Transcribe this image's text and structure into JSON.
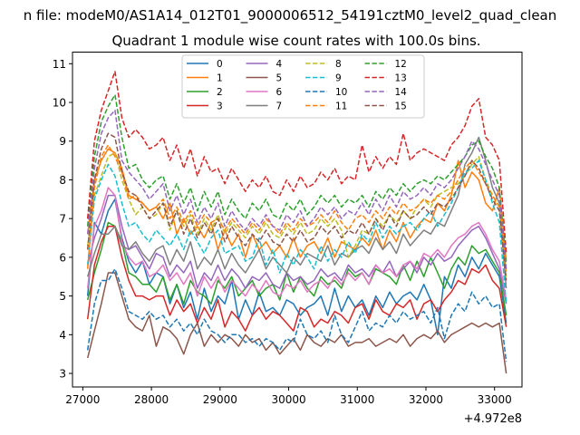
{
  "chart_data": {
    "type": "line",
    "suptitle": "n file: modeM0/AS1A14_012T01_9000006512_54191cztM0_level2_quad_clean",
    "title": "Quadrant 1 module wise count rates with 100.0s bins.",
    "xlabel": "",
    "ylabel": "",
    "offset_label": "+4.972e8",
    "xlim": [
      26850,
      33400
    ],
    "ylim": [
      2.65,
      11.3
    ],
    "x_ticks": [
      27000,
      28000,
      29000,
      30000,
      31000,
      32000,
      33000
    ],
    "x_tick_labels": [
      "27000",
      "28000",
      "29000",
      "30000",
      "31000",
      "32000",
      "33000"
    ],
    "y_ticks": [
      3,
      4,
      5,
      6,
      7,
      8,
      9,
      10,
      11
    ],
    "y_tick_labels": [
      "3",
      "4",
      "5",
      "6",
      "7",
      "8",
      "9",
      "10",
      "11"
    ],
    "x": [
      27070,
      27170,
      27270,
      27370,
      27470,
      27570,
      27670,
      27770,
      27870,
      27970,
      28070,
      28170,
      28270,
      28370,
      28470,
      28570,
      28670,
      28770,
      28870,
      28970,
      29070,
      29170,
      29270,
      29370,
      29470,
      29570,
      29670,
      29770,
      29870,
      29970,
      30070,
      30170,
      30270,
      30370,
      30470,
      30570,
      30670,
      30770,
      30870,
      30970,
      31070,
      31170,
      31270,
      31370,
      31470,
      31570,
      31670,
      31770,
      31870,
      31970,
      32070,
      32170,
      32270,
      32370,
      32470,
      32570,
      32670,
      32770,
      32870,
      32970,
      33070,
      33170
    ],
    "legend": {
      "placement": "top-center",
      "columns": 4
    },
    "grid": false,
    "series": [
      {
        "name": "0",
        "color": "#1f77b4",
        "style": "solid",
        "values": [
          5.0,
          6.9,
          6.6,
          7.2,
          7.5,
          6.5,
          5.9,
          5.6,
          5.9,
          5.3,
          5.6,
          5.5,
          4.8,
          5.3,
          4.7,
          5.1,
          4.4,
          5.2,
          4.6,
          5.0,
          4.8,
          5.4,
          4.4,
          4.9,
          4.5,
          5.1,
          4.6,
          4.7,
          4.5,
          4.9,
          4.8,
          4.5,
          4.7,
          4.8,
          5.0,
          4.5,
          5.2,
          4.6,
          5.0,
          4.7,
          4.9,
          4.5,
          5.0,
          4.7,
          5.1,
          4.8,
          5.0,
          5.1,
          4.9,
          5.3,
          4.9,
          4.0,
          5.5,
          5.2,
          5.8,
          5.5,
          6.0,
          5.7,
          6.1,
          5.8,
          5.5,
          4.3
        ]
      },
      {
        "name": "1",
        "color": "#ff7f0e",
        "style": "solid",
        "values": [
          6.6,
          8.0,
          8.5,
          8.8,
          8.7,
          8.3,
          7.6,
          7.5,
          7.4,
          7.2,
          7.3,
          7.0,
          7.4,
          6.6,
          7.0,
          6.6,
          6.8,
          6.5,
          6.9,
          6.2,
          6.7,
          6.3,
          6.6,
          6.0,
          6.6,
          6.2,
          6.4,
          6.1,
          6.3,
          6.0,
          6.5,
          6.0,
          6.3,
          6.4,
          6.1,
          6.5,
          6.0,
          6.4,
          6.3,
          6.2,
          6.5,
          6.3,
          6.7,
          6.2,
          6.7,
          6.4,
          6.9,
          6.5,
          6.8,
          7.0,
          6.9,
          7.4,
          7.2,
          7.6,
          8.5,
          7.8,
          8.2,
          8.0,
          7.4,
          7.2,
          7.8,
          5.9
        ]
      },
      {
        "name": "2",
        "color": "#2ca02c",
        "style": "solid",
        "values": [
          4.9,
          5.6,
          6.2,
          6.9,
          6.8,
          6.4,
          5.6,
          5.5,
          5.3,
          5.3,
          5.1,
          5.5,
          4.9,
          5.3,
          4.8,
          5.4,
          5.1,
          5.0,
          4.8,
          5.4,
          5.2,
          5.5,
          5.0,
          5.2,
          5.4,
          5.0,
          5.2,
          5.3,
          4.9,
          5.6,
          5.1,
          5.5,
          5.2,
          5.0,
          5.5,
          5.3,
          5.4,
          5.2,
          5.7,
          5.5,
          5.6,
          5.3,
          5.7,
          5.6,
          5.5,
          5.3,
          5.8,
          5.4,
          5.9,
          5.5,
          6.0,
          5.6,
          5.2,
          5.7,
          6.0,
          5.8,
          6.3,
          6.1,
          6.2,
          5.9,
          5.6,
          4.5
        ]
      },
      {
        "name": "3",
        "color": "#d62728",
        "style": "solid",
        "values": [
          4.4,
          5.8,
          6.4,
          6.8,
          6.8,
          6.0,
          5.4,
          5.0,
          5.0,
          4.9,
          5.0,
          5.0,
          4.5,
          4.9,
          4.6,
          4.8,
          4.3,
          4.7,
          4.4,
          4.9,
          4.2,
          4.6,
          4.4,
          4.1,
          4.5,
          4.7,
          4.4,
          4.6,
          4.5,
          4.3,
          4.1,
          4.7,
          4.6,
          4.2,
          4.4,
          4.3,
          4.6,
          4.5,
          4.3,
          4.7,
          4.8,
          4.4,
          4.9,
          4.6,
          4.5,
          4.8,
          4.7,
          4.9,
          4.4,
          4.8,
          4.9,
          4.6,
          4.9,
          5.1,
          5.4,
          5.3,
          5.7,
          5.6,
          5.8,
          5.4,
          5.2,
          4.2
        ]
      },
      {
        "name": "4",
        "color": "#9467bd",
        "style": "solid",
        "values": [
          5.8,
          6.5,
          7.0,
          7.6,
          7.6,
          6.8,
          6.2,
          6.3,
          6.0,
          5.7,
          6.1,
          6.0,
          5.5,
          5.8,
          5.6,
          5.9,
          5.2,
          5.6,
          5.4,
          5.8,
          5.4,
          5.7,
          5.5,
          5.2,
          5.5,
          5.4,
          5.6,
          5.3,
          5.2,
          5.6,
          5.4,
          5.5,
          5.3,
          5.4,
          5.7,
          5.5,
          5.6,
          5.4,
          5.8,
          5.6,
          5.7,
          5.5,
          5.8,
          5.6,
          5.9,
          5.5,
          5.7,
          5.9,
          5.6,
          6.0,
          5.8,
          6.1,
          5.9,
          6.0,
          6.3,
          6.5,
          6.7,
          6.8,
          6.5,
          6.1,
          5.7,
          4.8
        ]
      },
      {
        "name": "5",
        "color": "#8c564b",
        "style": "solid",
        "values": [
          3.4,
          4.1,
          4.8,
          5.6,
          5.6,
          5.0,
          4.4,
          4.2,
          4.1,
          4.5,
          3.7,
          4.2,
          4.1,
          3.9,
          3.5,
          4.0,
          4.3,
          3.7,
          4.0,
          3.8,
          4.0,
          3.9,
          3.7,
          4.0,
          3.8,
          3.9,
          3.6,
          3.8,
          3.5,
          3.7,
          3.9,
          3.6,
          4.0,
          3.8,
          3.7,
          3.9,
          3.8,
          4.0,
          3.7,
          3.8,
          3.8,
          3.9,
          3.7,
          3.8,
          3.9,
          3.8,
          4.0,
          3.7,
          3.9,
          4.0,
          3.9,
          4.1,
          3.8,
          4.0,
          4.1,
          4.2,
          4.3,
          4.2,
          4.3,
          4.2,
          4.3,
          3.0
        ]
      },
      {
        "name": "6",
        "color": "#e377c2",
        "style": "solid",
        "values": [
          5.2,
          6.8,
          7.2,
          7.8,
          7.6,
          6.4,
          6.0,
          5.8,
          5.9,
          5.5,
          5.6,
          5.8,
          5.4,
          5.6,
          5.3,
          5.6,
          5.0,
          5.5,
          5.2,
          5.5,
          5.1,
          5.4,
          5.2,
          5.0,
          5.3,
          5.1,
          5.4,
          5.1,
          5.0,
          5.3,
          5.2,
          5.4,
          5.1,
          5.3,
          5.4,
          5.2,
          5.5,
          5.3,
          5.6,
          5.4,
          5.6,
          5.3,
          5.8,
          5.6,
          5.7,
          5.5,
          5.8,
          5.9,
          5.7,
          6.1,
          6.0,
          6.2,
          6.0,
          6.3,
          6.5,
          6.6,
          6.8,
          6.9,
          6.6,
          6.2,
          5.9,
          4.9
        ]
      },
      {
        "name": "7",
        "color": "#7f7f7f",
        "style": "solid",
        "values": [
          5.5,
          6.1,
          6.6,
          6.6,
          6.8,
          6.3,
          6.2,
          6.4,
          6.1,
          5.9,
          6.2,
          6.3,
          5.8,
          6.2,
          5.9,
          6.4,
          5.7,
          6.0,
          5.8,
          6.2,
          5.7,
          6.1,
          5.8,
          5.6,
          5.9,
          6.2,
          5.7,
          6.0,
          5.8,
          5.6,
          6.0,
          5.8,
          6.1,
          6.0,
          5.9,
          6.3,
          5.8,
          6.1,
          6.0,
          6.2,
          6.3,
          6.1,
          6.5,
          6.2,
          6.4,
          6.1,
          6.6,
          6.3,
          6.5,
          6.7,
          6.6,
          6.9,
          6.8,
          7.2,
          7.6,
          8.4,
          8.7,
          9.1,
          8.5,
          7.8,
          7.4,
          5.2
        ]
      },
      {
        "name": "8",
        "color": "#bcbd22",
        "style": "dashed",
        "values": [
          6.3,
          7.6,
          8.1,
          8.6,
          8.7,
          8.0,
          7.5,
          7.1,
          7.3,
          7.0,
          7.1,
          7.4,
          6.7,
          7.2,
          6.8,
          7.1,
          6.6,
          7.0,
          6.7,
          7.1,
          6.6,
          6.9,
          6.7,
          6.5,
          6.8,
          6.6,
          6.9,
          6.6,
          6.5,
          6.8,
          6.6,
          6.9,
          6.6,
          6.7,
          7.0,
          6.8,
          7.0,
          6.7,
          6.0,
          6.3,
          6.7,
          6.6,
          7.0,
          6.8,
          7.1,
          6.9,
          7.2,
          7.0,
          7.3,
          7.5,
          7.3,
          7.6,
          7.7,
          7.8,
          7.9,
          8.1,
          8.4,
          8.6,
          8.0,
          7.6,
          7.3,
          5.5
        ]
      },
      {
        "name": "9",
        "color": "#17becf",
        "style": "dashed",
        "values": [
          5.8,
          7.5,
          8.0,
          8.4,
          8.1,
          7.4,
          6.8,
          6.9,
          6.6,
          6.4,
          6.7,
          6.5,
          6.3,
          6.6,
          6.2,
          6.7,
          6.4,
          6.1,
          6.5,
          6.7,
          6.1,
          6.2,
          6.3,
          5.9,
          6.0,
          6.5,
          5.8,
          6.2,
          5.6,
          6.1,
          5.8,
          6.2,
          6.0,
          5.7,
          6.3,
          5.9,
          6.2,
          6.0,
          6.4,
          6.1,
          6.6,
          6.4,
          6.9,
          6.5,
          6.8,
          6.6,
          6.8,
          6.9,
          6.7,
          7.0,
          7.2,
          6.8,
          7.1,
          7.4,
          7.8,
          8.2,
          8.3,
          8.5,
          8.0,
          7.4,
          6.9,
          4.8
        ]
      },
      {
        "name": "10",
        "color": "#1f77b4",
        "style": "dashed",
        "values": [
          3.6,
          4.8,
          5.4,
          5.4,
          5.7,
          5.2,
          4.6,
          4.5,
          4.4,
          4.6,
          4.4,
          4.5,
          4.2,
          4.4,
          4.1,
          4.3,
          4.0,
          4.4,
          4.1,
          4.0,
          3.8,
          4.0,
          4.0,
          3.8,
          3.9,
          3.7,
          3.9,
          3.8,
          3.6,
          3.9,
          3.8,
          4.4,
          4.0,
          3.9,
          4.1,
          3.8,
          4.5,
          4.0,
          3.8,
          4.2,
          4.6,
          4.1,
          4.3,
          4.2,
          4.5,
          4.3,
          4.6,
          4.4,
          4.5,
          4.6,
          4.3,
          4.7,
          3.9,
          4.5,
          4.8,
          4.6,
          5.1,
          4.8,
          5.0,
          4.7,
          4.8,
          3.3
        ]
      },
      {
        "name": "11",
        "color": "#ff7f0e",
        "style": "dashed",
        "values": [
          5.7,
          7.8,
          8.6,
          8.9,
          8.6,
          8.2,
          7.5,
          7.6,
          7.4,
          7.2,
          7.3,
          7.5,
          7.0,
          7.3,
          6.9,
          7.2,
          6.8,
          7.1,
          6.9,
          7.0,
          6.7,
          7.0,
          6.8,
          6.6,
          6.9,
          6.7,
          7.0,
          6.8,
          6.6,
          6.9,
          6.7,
          7.0,
          6.8,
          6.9,
          7.1,
          6.9,
          7.2,
          6.9,
          6.7,
          7.0,
          7.1,
          6.9,
          7.2,
          7.0,
          7.3,
          7.1,
          7.4,
          7.2,
          7.3,
          7.5,
          7.4,
          7.6,
          7.5,
          7.7,
          8.0,
          8.3,
          8.5,
          8.2,
          7.9,
          7.6,
          7.3,
          5.6
        ]
      },
      {
        "name": "12",
        "color": "#2ca02c",
        "style": "dashed",
        "values": [
          6.8,
          8.6,
          9.5,
          9.9,
          10.2,
          9.1,
          8.3,
          8.4,
          8.0,
          7.8,
          8.0,
          8.1,
          7.5,
          7.9,
          7.4,
          7.8,
          7.2,
          7.7,
          7.3,
          7.7,
          7.1,
          7.5,
          7.2,
          7.0,
          7.4,
          7.2,
          7.5,
          7.1,
          7.0,
          7.4,
          7.2,
          7.5,
          7.1,
          7.3,
          7.6,
          7.4,
          7.6,
          7.3,
          7.5,
          7.4,
          7.6,
          7.3,
          7.7,
          7.5,
          7.8,
          7.6,
          7.9,
          7.7,
          7.9,
          8.0,
          7.9,
          8.1,
          8.0,
          8.2,
          8.4,
          8.6,
          8.9,
          9.0,
          8.6,
          8.3,
          7.8,
          5.8
        ]
      },
      {
        "name": "13",
        "color": "#d62728",
        "style": "dashed",
        "values": [
          7.0,
          9.0,
          9.8,
          10.3,
          10.8,
          9.6,
          9.1,
          9.3,
          9.1,
          8.8,
          8.9,
          9.1,
          8.5,
          8.9,
          8.3,
          8.8,
          8.1,
          8.6,
          8.2,
          8.3,
          7.9,
          8.3,
          8.0,
          7.7,
          8.0,
          7.8,
          8.1,
          7.7,
          7.6,
          8.0,
          7.7,
          8.1,
          7.8,
          7.9,
          8.2,
          8.0,
          8.3,
          7.9,
          8.1,
          8.0,
          8.9,
          8.2,
          8.6,
          8.3,
          8.6,
          8.4,
          9.2,
          8.5,
          8.7,
          8.8,
          8.7,
          8.6,
          8.5,
          8.9,
          9.1,
          9.4,
          9.9,
          10.1,
          9.1,
          8.9,
          8.5,
          6.1
        ]
      },
      {
        "name": "14",
        "color": "#9467bd",
        "style": "dashed",
        "values": [
          6.6,
          8.3,
          9.2,
          9.6,
          9.8,
          8.5,
          8.2,
          8.0,
          7.8,
          7.5,
          7.7,
          7.9,
          7.2,
          7.6,
          7.1,
          7.5,
          6.9,
          7.3,
          7.0,
          7.4,
          6.8,
          7.2,
          6.9,
          6.7,
          7.0,
          6.8,
          7.1,
          6.8,
          6.7,
          7.1,
          6.9,
          7.2,
          6.8,
          7.0,
          7.3,
          7.1,
          7.3,
          7.0,
          7.2,
          7.1,
          7.4,
          7.1,
          7.5,
          7.2,
          7.6,
          7.3,
          7.7,
          7.5,
          7.6,
          7.8,
          7.6,
          7.9,
          7.8,
          8.0,
          8.3,
          8.6,
          9.0,
          8.8,
          8.4,
          8.0,
          7.6,
          5.7
        ]
      },
      {
        "name": "15",
        "color": "#8c564b",
        "style": "dashed",
        "values": [
          6.2,
          8.0,
          8.8,
          9.2,
          9.1,
          8.2,
          7.7,
          7.6,
          7.3,
          7.0,
          7.2,
          7.4,
          6.8,
          7.2,
          6.6,
          7.0,
          6.5,
          6.9,
          6.6,
          7.0,
          6.4,
          6.8,
          6.5,
          6.3,
          6.6,
          6.4,
          6.7,
          6.4,
          6.3,
          6.6,
          6.4,
          6.7,
          6.4,
          6.5,
          6.8,
          6.6,
          6.8,
          6.5,
          6.7,
          6.6,
          6.9,
          6.6,
          7.0,
          6.7,
          7.1,
          6.8,
          7.2,
          7.0,
          7.1,
          7.3,
          7.1,
          7.4,
          7.3,
          7.5,
          7.8,
          8.1,
          8.5,
          8.3,
          7.9,
          7.5,
          7.2,
          5.4
        ]
      }
    ]
  }
}
